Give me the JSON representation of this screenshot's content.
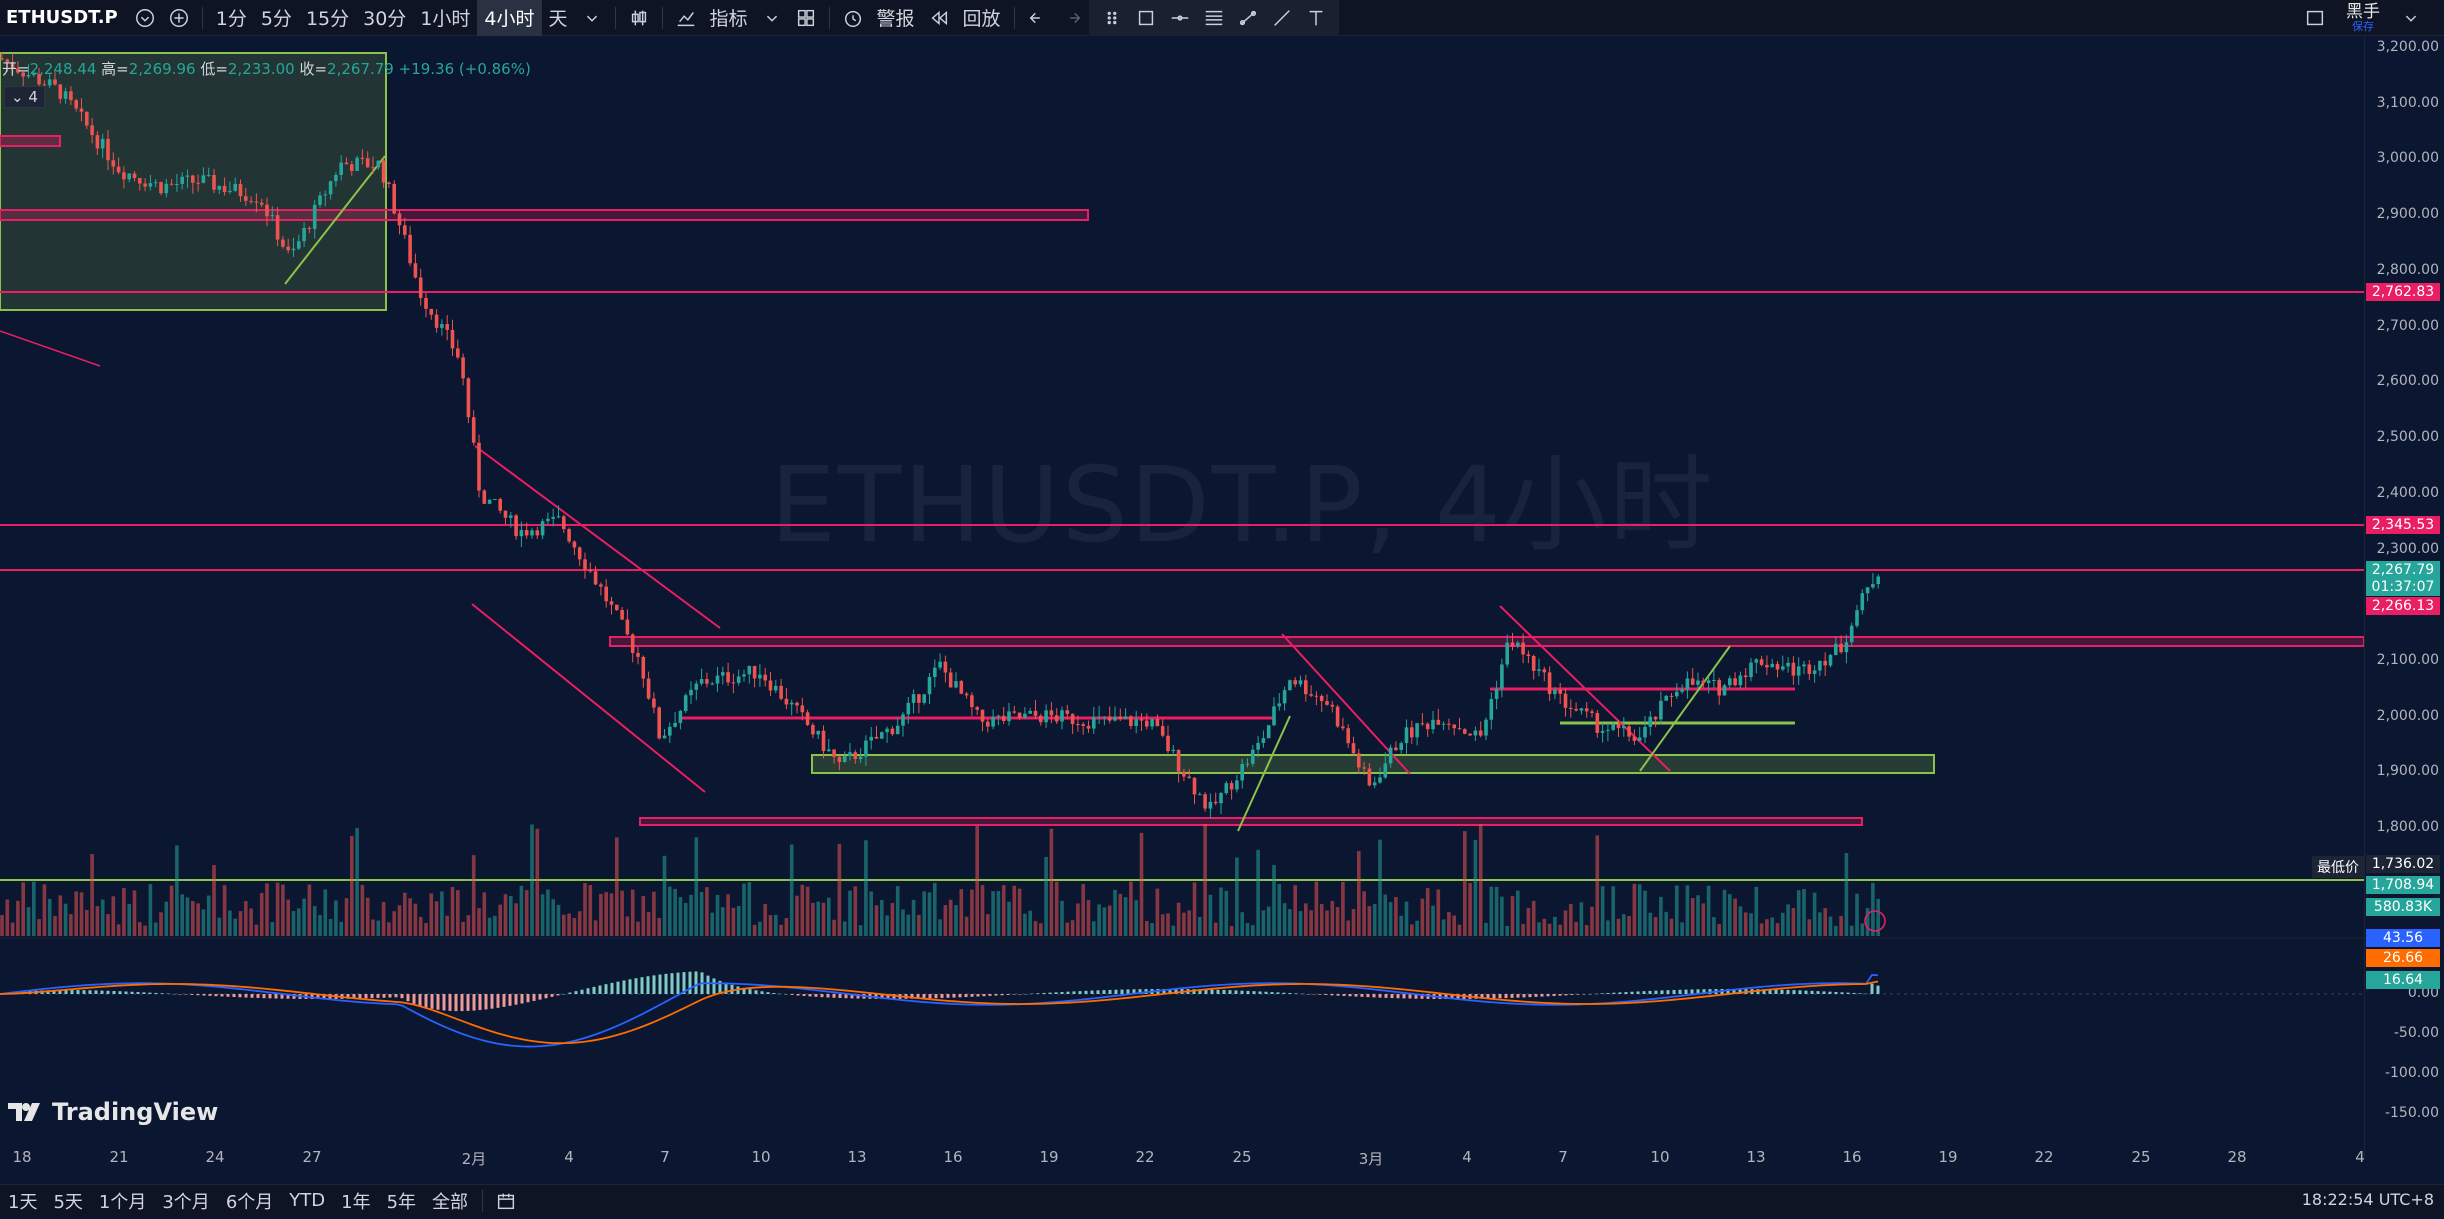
{
  "toolbar": {
    "symbol": "ETHUSDT.P",
    "intervals": [
      "1分",
      "5分",
      "15分",
      "30分",
      "1小时",
      "4小时",
      "天"
    ],
    "active_interval": "4小时",
    "indicators_label": "指标",
    "alert_label": "警报",
    "replay_label": "回放"
  },
  "profile": {
    "name": "黑手",
    "save": "保存"
  },
  "legend": {
    "open_label": "开=",
    "open": "2,248.44",
    "high_label": "高=",
    "high": "2,269.96",
    "low_label": "低=",
    "low": "2,233.00",
    "close_label": "收=",
    "close": "2,267.79",
    "change": "+19.36 (+0.86%)",
    "chip": "4"
  },
  "watermark": "ETHUSDT.P, 4小时",
  "price_axis": {
    "labels": [
      "3,200.00",
      "3,100.00",
      "3,000.00",
      "2,900.00",
      "2,800.00",
      "2,700.00",
      "2,600.00",
      "2,500.00",
      "2,400.00",
      "2,300.00",
      "2,100.00",
      "2,000.00",
      "1,900.00",
      "1,800.00"
    ],
    "tags": [
      {
        "text": "2,762.83",
        "color": "#e91e63"
      },
      {
        "text": "2,345.53",
        "color": "#e91e63"
      },
      {
        "text": "2,267.79",
        "color": "#26a69a"
      },
      {
        "text": "01:37:07",
        "color": "#26a69a"
      },
      {
        "text": "2,266.13",
        "color": "#e91e63"
      },
      {
        "text": "1,736.02",
        "color": "#1d2436"
      },
      {
        "text": "1,708.94",
        "color": "#26a69a"
      },
      {
        "text": "580.83K",
        "color": "#26a69a"
      }
    ],
    "lowest_price_label": "最低价",
    "macd_labels": [
      "0.00",
      "-50.00",
      "-100.00",
      "-150.00"
    ],
    "macd_tags": [
      {
        "text": "43.56",
        "color": "#2962ff"
      },
      {
        "text": "26.66",
        "color": "#ff6d00"
      },
      {
        "text": "16.64",
        "color": "#26a69a"
      }
    ]
  },
  "time_axis": [
    "18",
    "21",
    "24",
    "27",
    "2月",
    "4",
    "7",
    "10",
    "13",
    "16",
    "19",
    "22",
    "25",
    "3月",
    "4",
    "7",
    "10",
    "13",
    "16",
    "19",
    "22",
    "25",
    "28",
    "4"
  ],
  "bottombar": {
    "ranges": [
      "1天",
      "5天",
      "1个月",
      "3个月",
      "6个月",
      "YTD",
      "1年",
      "5年",
      "全部"
    ],
    "clock": "18:22:54 UTC+8"
  },
  "brand": "TradingView",
  "colors": {
    "bg": "#0b1630",
    "up": "#26a69a",
    "down": "#ef5350",
    "pink": "#e91e63",
    "green": "#8bc34a"
  }
}
